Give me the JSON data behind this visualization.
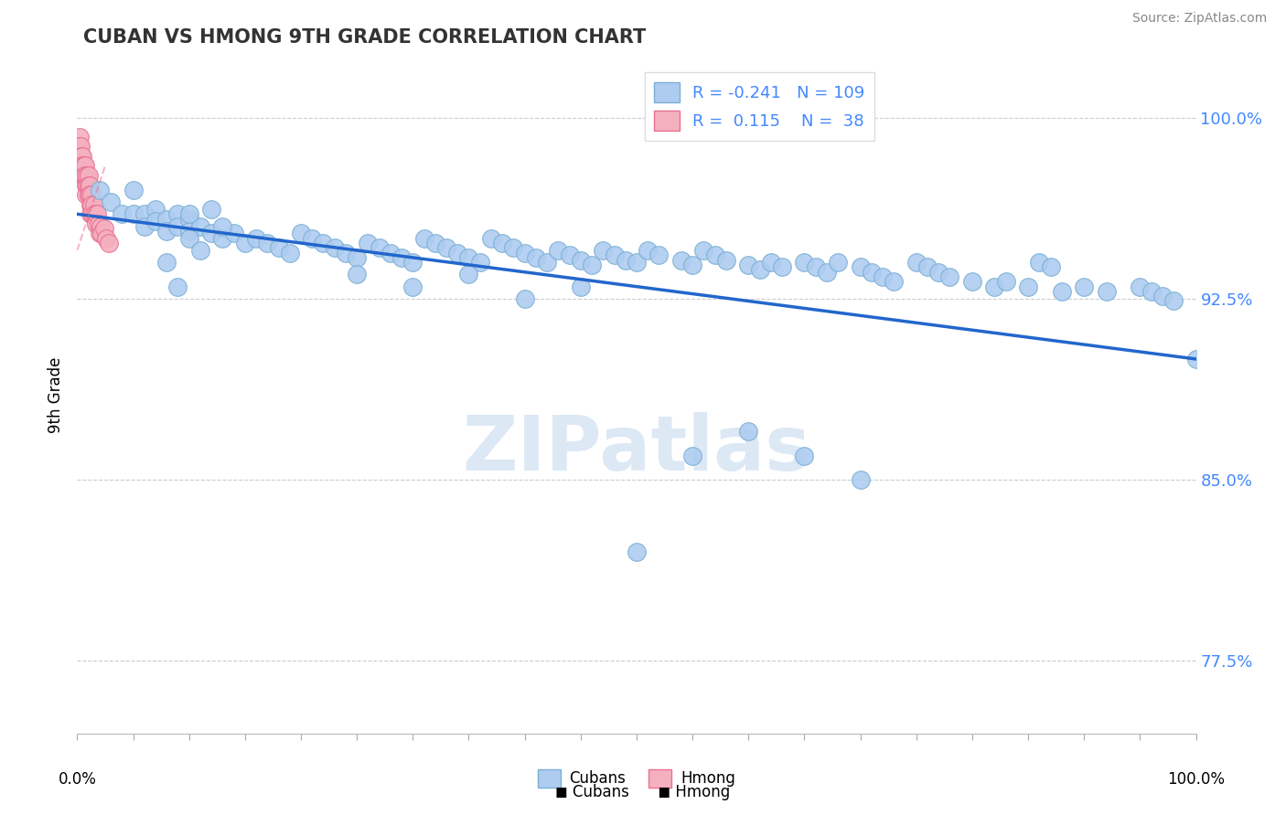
{
  "title": "CUBAN VS HMONG 9TH GRADE CORRELATION CHART",
  "source": "Source: ZipAtlas.com",
  "ylabel": "9th Grade",
  "ytick_labels": [
    "77.5%",
    "85.0%",
    "92.5%",
    "100.0%"
  ],
  "ytick_values": [
    0.775,
    0.85,
    0.925,
    1.0
  ],
  "xlim": [
    0.0,
    1.0
  ],
  "ylim": [
    0.745,
    1.025
  ],
  "legend_r_cuban": "-0.241",
  "legend_n_cuban": "109",
  "legend_r_hmong": "0.115",
  "legend_n_hmong": "38",
  "cuban_color": "#aeccf0",
  "cuban_edge": "#7aafd4",
  "hmong_color": "#f5b0c0",
  "hmong_edge": "#e87090",
  "trendline_cuban_color": "#2266cc",
  "trendline_hmong_color": "#e87090",
  "grid_color": "#cccccc",
  "background_color": "#ffffff",
  "watermark_color": "#dde8f5",
  "tick_color": "#4488ff",
  "title_color": "#333333",
  "source_color": "#888888",
  "cuban_trend_x0": 0.0,
  "cuban_trend_y0": 0.96,
  "cuban_trend_x1": 1.0,
  "cuban_trend_y1": 0.9,
  "hmong_trend_x0": 0.0,
  "hmong_trend_y0": 0.945,
  "hmong_trend_x1": 0.025,
  "hmong_trend_y1": 0.98,
  "cuban_scatter_x": [
    0.02,
    0.03,
    0.04,
    0.05,
    0.05,
    0.06,
    0.06,
    0.07,
    0.07,
    0.08,
    0.08,
    0.09,
    0.09,
    0.1,
    0.1,
    0.11,
    0.12,
    0.13,
    0.14,
    0.15,
    0.16,
    0.17,
    0.18,
    0.19,
    0.2,
    0.21,
    0.22,
    0.23,
    0.24,
    0.25,
    0.26,
    0.27,
    0.28,
    0.29,
    0.3,
    0.31,
    0.32,
    0.33,
    0.34,
    0.35,
    0.36,
    0.37,
    0.38,
    0.39,
    0.4,
    0.41,
    0.42,
    0.43,
    0.44,
    0.45,
    0.46,
    0.47,
    0.48,
    0.49,
    0.5,
    0.51,
    0.52,
    0.54,
    0.55,
    0.56,
    0.57,
    0.58,
    0.6,
    0.61,
    0.62,
    0.63,
    0.65,
    0.66,
    0.67,
    0.68,
    0.7,
    0.71,
    0.72,
    0.73,
    0.75,
    0.76,
    0.77,
    0.78,
    0.8,
    0.82,
    0.83,
    0.85,
    0.86,
    0.87,
    0.88,
    0.9,
    0.92,
    0.95,
    0.96,
    0.97,
    0.98,
    1.0,
    0.08,
    0.09,
    0.1,
    0.1,
    0.11,
    0.12,
    0.13,
    0.25,
    0.3,
    0.35,
    0.4,
    0.45,
    0.5,
    0.55,
    0.6,
    0.65,
    0.7
  ],
  "cuban_scatter_y": [
    0.97,
    0.965,
    0.96,
    0.97,
    0.96,
    0.96,
    0.955,
    0.962,
    0.957,
    0.958,
    0.953,
    0.96,
    0.955,
    0.958,
    0.953,
    0.955,
    0.952,
    0.95,
    0.952,
    0.948,
    0.95,
    0.948,
    0.946,
    0.944,
    0.952,
    0.95,
    0.948,
    0.946,
    0.944,
    0.942,
    0.948,
    0.946,
    0.944,
    0.942,
    0.94,
    0.95,
    0.948,
    0.946,
    0.944,
    0.942,
    0.94,
    0.95,
    0.948,
    0.946,
    0.944,
    0.942,
    0.94,
    0.945,
    0.943,
    0.941,
    0.939,
    0.945,
    0.943,
    0.941,
    0.94,
    0.945,
    0.943,
    0.941,
    0.939,
    0.945,
    0.943,
    0.941,
    0.939,
    0.937,
    0.94,
    0.938,
    0.94,
    0.938,
    0.936,
    0.94,
    0.938,
    0.936,
    0.934,
    0.932,
    0.94,
    0.938,
    0.936,
    0.934,
    0.932,
    0.93,
    0.932,
    0.93,
    0.94,
    0.938,
    0.928,
    0.93,
    0.928,
    0.93,
    0.928,
    0.926,
    0.924,
    0.9,
    0.94,
    0.93,
    0.96,
    0.95,
    0.945,
    0.962,
    0.955,
    0.935,
    0.93,
    0.935,
    0.925,
    0.93,
    0.82,
    0.86,
    0.87,
    0.86,
    0.85
  ],
  "hmong_scatter_x": [
    0.002,
    0.002,
    0.003,
    0.003,
    0.004,
    0.004,
    0.005,
    0.005,
    0.005,
    0.006,
    0.006,
    0.007,
    0.007,
    0.008,
    0.008,
    0.009,
    0.009,
    0.01,
    0.01,
    0.01,
    0.011,
    0.011,
    0.012,
    0.012,
    0.013,
    0.013,
    0.014,
    0.015,
    0.016,
    0.017,
    0.018,
    0.019,
    0.02,
    0.021,
    0.022,
    0.024,
    0.026,
    0.028
  ],
  "hmong_scatter_y": [
    0.992,
    0.988,
    0.984,
    0.988,
    0.984,
    0.98,
    0.984,
    0.98,
    0.976,
    0.98,
    0.976,
    0.98,
    0.976,
    0.972,
    0.968,
    0.976,
    0.972,
    0.976,
    0.972,
    0.968,
    0.972,
    0.968,
    0.964,
    0.96,
    0.968,
    0.964,
    0.96,
    0.964,
    0.96,
    0.956,
    0.96,
    0.956,
    0.952,
    0.955,
    0.952,
    0.954,
    0.95,
    0.948
  ]
}
